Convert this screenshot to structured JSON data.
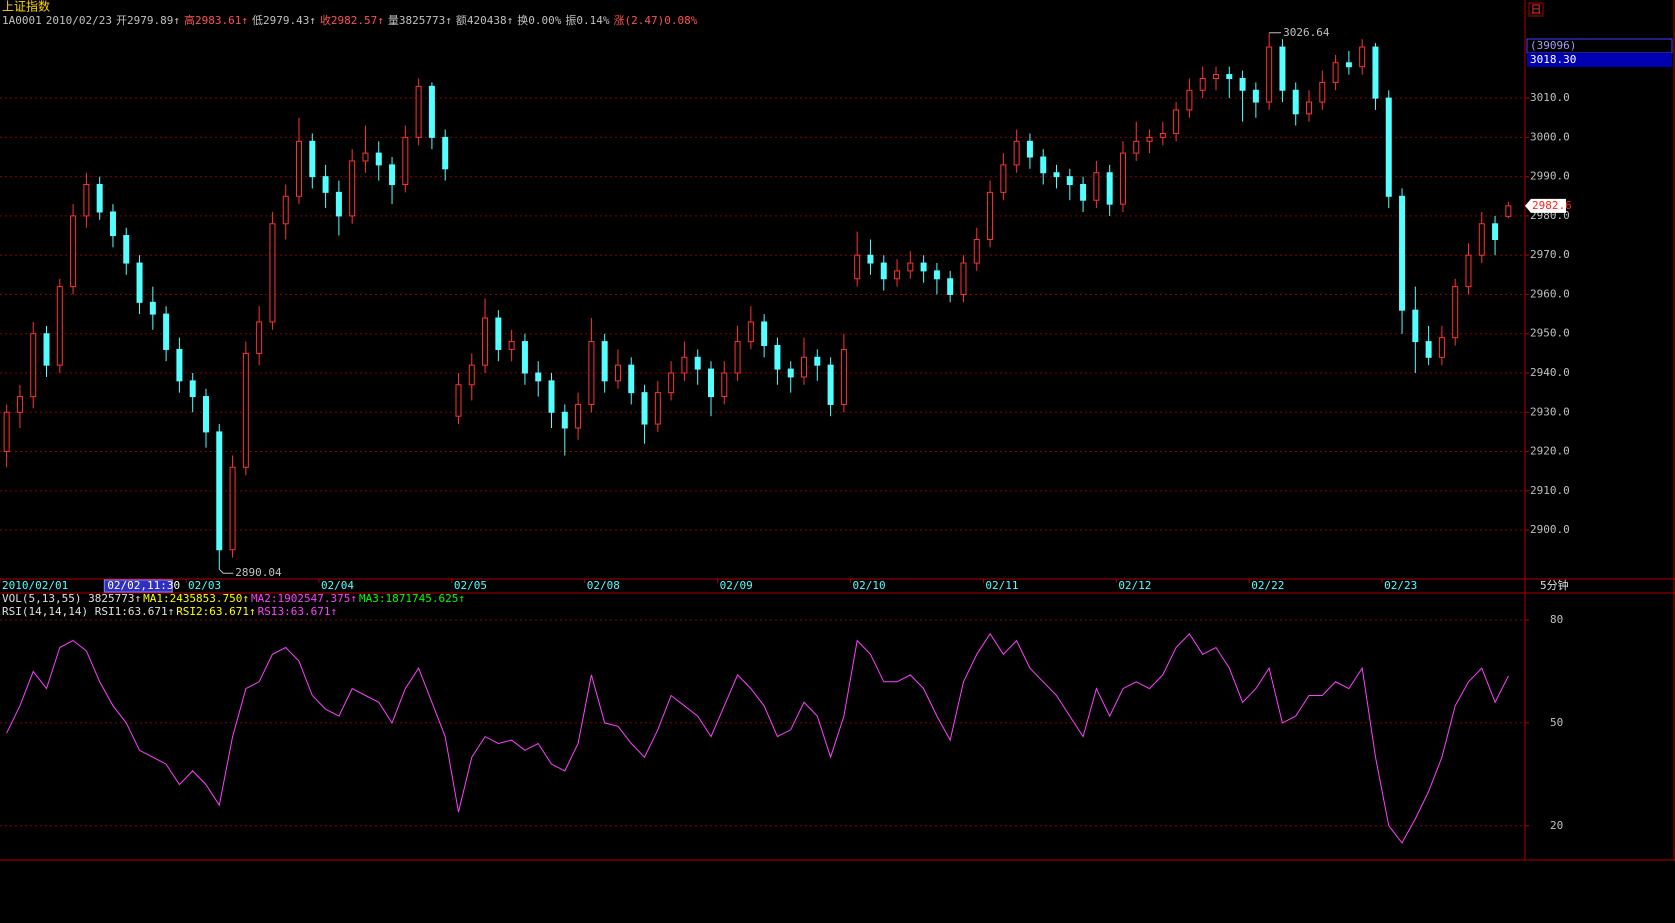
{
  "chart_data": [
    {
      "type": "candlestick",
      "title": "上证指数",
      "quote": [
        "1A0001",
        "2010/02/23",
        "开2979.89↑",
        "高2983.61↑",
        "低2979.43↑",
        "收2982.57↑",
        "量3825773↑",
        "额420438↑",
        "换0.00%",
        "振0.14%",
        "涨(2.47)0.08%"
      ],
      "period": "日",
      "interval_label": "5分钟",
      "cursor_readout": [
        "(39096)",
        "3018.30"
      ],
      "cursor_xlabel": {
        "value": 8,
        "label": "02/02,11:30"
      },
      "volume_legend": [
        "VOL(5,13,55) 3825773↑",
        "MA1:2435853.750↑",
        "MA2:1902547.375↑",
        "MA3:1871745.625↑"
      ],
      "high_label": "3026.64",
      "low_label": "2890.04",
      "last_price_label": "2982.6",
      "ylim": [
        2887.8,
        3030.4
      ],
      "yticks": [
        {
          "value": 2900,
          "label": "2900.0"
        },
        {
          "value": 2910,
          "label": "2910.0"
        },
        {
          "value": 2920,
          "label": "2920.0"
        },
        {
          "value": 2930,
          "label": "2930.0"
        },
        {
          "value": 2940,
          "label": "2940.0"
        },
        {
          "value": 2950,
          "label": "2950.0"
        },
        {
          "value": 2960,
          "label": "2960.0"
        },
        {
          "value": 2970,
          "label": "2970.0"
        },
        {
          "value": 2980,
          "label": "2980.0"
        },
        {
          "value": 2990,
          "label": "2990.0"
        },
        {
          "value": 3000,
          "label": "3000.0"
        },
        {
          "value": 3010,
          "label": "3010.0"
        }
      ],
      "xticks": [
        {
          "value": 0,
          "label": "2010/02/01"
        },
        {
          "value": 14,
          "label": "02/03"
        },
        {
          "value": 24,
          "label": "02/04"
        },
        {
          "value": 34,
          "label": "02/05"
        },
        {
          "value": 44,
          "label": "02/08"
        },
        {
          "value": 54,
          "label": "02/09"
        },
        {
          "value": 64,
          "label": "02/10"
        },
        {
          "value": 74,
          "label": "02/11"
        },
        {
          "value": 84,
          "label": "02/12"
        },
        {
          "value": 94,
          "label": "02/22"
        },
        {
          "value": 104,
          "label": "02/23"
        }
      ],
      "grid": true,
      "up_color": "#ff3232",
      "down_color": "#54ffff",
      "candles": [
        [
          2920,
          2932,
          2916,
          2930
        ],
        [
          2930,
          2937,
          2926,
          2934
        ],
        [
          2934,
          2953,
          2931,
          2950
        ],
        [
          2950,
          2952,
          2939,
          2942
        ],
        [
          2942,
          2964,
          2940,
          2962
        ],
        [
          2962,
          2983,
          2960,
          2980
        ],
        [
          2980,
          2991,
          2977,
          2988
        ],
        [
          2988,
          2990,
          2979,
          2981
        ],
        [
          2981,
          2983,
          2972,
          2975
        ],
        [
          2975,
          2977,
          2965,
          2968
        ],
        [
          2968,
          2970,
          2955,
          2958
        ],
        [
          2958,
          2962,
          2951,
          2955
        ],
        [
          2955,
          2957,
          2943,
          2946
        ],
        [
          2946,
          2949,
          2935,
          2938
        ],
        [
          2938,
          2940,
          2930,
          2934
        ],
        [
          2934,
          2936,
          2921,
          2925
        ],
        [
          2925,
          2927,
          2890.04,
          2895
        ],
        [
          2895,
          2919,
          2893,
          2916
        ],
        [
          2916,
          2948,
          2914,
          2945
        ],
        [
          2945,
          2957,
          2942,
          2953
        ],
        [
          2953,
          2981,
          2951,
          2978
        ],
        [
          2978,
          2988,
          2974,
          2985
        ],
        [
          2985,
          3005,
          2983,
          2999
        ],
        [
          2999,
          3001,
          2987,
          2990
        ],
        [
          2990,
          2993,
          2982,
          2986
        ],
        [
          2986,
          2989,
          2975,
          2980
        ],
        [
          2980,
          2997,
          2978,
          2994
        ],
        [
          2994,
          3003,
          2991,
          2996
        ],
        [
          2996,
          2999,
          2989,
          2993
        ],
        [
          2993,
          2995,
          2983,
          2988
        ],
        [
          2988,
          3003,
          2986,
          3000
        ],
        [
          3000,
          3015,
          2998,
          3013
        ],
        [
          3013,
          3014,
          2997,
          3000
        ],
        [
          3000,
          3002,
          2989,
          2992
        ],
        [
          2929,
          2940,
          2927,
          2937
        ],
        [
          2937,
          2945,
          2933,
          2942
        ],
        [
          2942,
          2959,
          2940,
          2954
        ],
        [
          2954,
          2956,
          2943,
          2946
        ],
        [
          2946,
          2951,
          2943,
          2948
        ],
        [
          2948,
          2950,
          2937,
          2940
        ],
        [
          2940,
          2943,
          2934,
          2938
        ],
        [
          2938,
          2940,
          2926,
          2930
        ],
        [
          2930,
          2932,
          2919,
          2926
        ],
        [
          2926,
          2935,
          2923,
          2932
        ],
        [
          2932,
          2954,
          2930,
          2948
        ],
        [
          2948,
          2950,
          2935,
          2938
        ],
        [
          2938,
          2946,
          2936,
          2942
        ],
        [
          2942,
          2944,
          2932,
          2935
        ],
        [
          2935,
          2937,
          2922,
          2927
        ],
        [
          2927,
          2938,
          2925,
          2935
        ],
        [
          2935,
          2943,
          2933,
          2940
        ],
        [
          2940,
          2948,
          2938,
          2944
        ],
        [
          2944,
          2946,
          2937,
          2941
        ],
        [
          2941,
          2943,
          2929,
          2934
        ],
        [
          2934,
          2943,
          2932,
          2940
        ],
        [
          2940,
          2952,
          2938,
          2948
        ],
        [
          2948,
          2957,
          2946,
          2953
        ],
        [
          2953,
          2955,
          2944,
          2947
        ],
        [
          2947,
          2949,
          2937,
          2941
        ],
        [
          2941,
          2943,
          2935,
          2939
        ],
        [
          2939,
          2949,
          2937,
          2944
        ],
        [
          2944,
          2946,
          2938,
          2942
        ],
        [
          2942,
          2944,
          2929,
          2932
        ],
        [
          2932,
          2950,
          2930,
          2946
        ],
        [
          2964,
          2976,
          2962,
          2970
        ],
        [
          2970,
          2974,
          2965,
          2968
        ],
        [
          2968,
          2970,
          2961,
          2964
        ],
        [
          2964,
          2969,
          2962,
          2966
        ],
        [
          2966,
          2971,
          2964,
          2968
        ],
        [
          2968,
          2970,
          2963,
          2966
        ],
        [
          2966,
          2968,
          2960,
          2964
        ],
        [
          2964,
          2966,
          2958,
          2960
        ],
        [
          2960,
          2970,
          2958,
          2968
        ],
        [
          2968,
          2977,
          2966,
          2974
        ],
        [
          2974,
          2989,
          2972,
          2986
        ],
        [
          2986,
          2996,
          2984,
          2993
        ],
        [
          2993,
          3002,
          2991,
          2999
        ],
        [
          2999,
          3001,
          2992,
          2995
        ],
        [
          2995,
          2997,
          2988,
          2991
        ],
        [
          2991,
          2993,
          2987,
          2990
        ],
        [
          2990,
          2992,
          2984,
          2988
        ],
        [
          2988,
          2990,
          2981,
          2984
        ],
        [
          2984,
          2994,
          2982,
          2991
        ],
        [
          2991,
          2993,
          2980,
          2983
        ],
        [
          2983,
          2999,
          2981,
          2996
        ],
        [
          2996,
          3004,
          2994,
          2999
        ],
        [
          2999,
          3002,
          2996,
          3000
        ],
        [
          3000,
          3004,
          2998,
          3001
        ],
        [
          3001,
          3009,
          2999,
          3007
        ],
        [
          3007,
          3015,
          3005,
          3012
        ],
        [
          3012,
          3018,
          3010,
          3015
        ],
        [
          3015,
          3018,
          3012,
          3016
        ],
        [
          3016,
          3018,
          3010,
          3015
        ],
        [
          3015,
          3017,
          3004,
          3012
        ],
        [
          3012,
          3014,
          3005,
          3009
        ],
        [
          3009,
          3026.64,
          3007,
          3023
        ],
        [
          3023,
          3025,
          3009,
          3012
        ],
        [
          3012,
          3014,
          3003,
          3006
        ],
        [
          3006,
          3012,
          3004,
          3009
        ],
        [
          3009,
          3017,
          3007,
          3014
        ],
        [
          3014,
          3021,
          3012,
          3019
        ],
        [
          3019,
          3022,
          3016,
          3018
        ],
        [
          3018,
          3025,
          3016,
          3023
        ],
        [
          3023,
          3024,
          3007,
          3010
        ],
        [
          3010,
          3012,
          2982,
          2985
        ],
        [
          2985,
          2987,
          2950,
          2956
        ],
        [
          2956,
          2962,
          2940,
          2948
        ],
        [
          2948,
          2952,
          2942,
          2944
        ],
        [
          2944,
          2952,
          2942,
          2949
        ],
        [
          2949,
          2964,
          2947,
          2962
        ],
        [
          2962,
          2973,
          2960,
          2970
        ],
        [
          2970,
          2981,
          2968,
          2978
        ],
        [
          2978,
          2980,
          2970,
          2974
        ],
        [
          2979.89,
          2983.61,
          2979.43,
          2982.57
        ]
      ]
    },
    {
      "type": "line",
      "legend_text": [
        "RSI(14,14,14) RSI1:63.671↑",
        "RSI2:63.671↑",
        "RSI3:63.671↑"
      ],
      "color": "#ff40ff",
      "ylim": [
        10.6,
        84.1
      ],
      "yticks": [
        20,
        50,
        80
      ],
      "grid": true,
      "values": [
        47,
        55,
        65,
        60,
        72,
        74,
        71,
        62,
        55,
        50,
        42,
        40,
        38,
        32,
        36,
        32,
        26,
        46,
        60,
        62,
        70,
        72,
        68,
        58,
        54,
        52,
        60,
        58,
        56,
        50,
        60,
        66,
        56,
        46,
        24,
        40,
        46,
        44,
        45,
        42,
        44,
        38,
        36,
        44,
        64,
        50,
        49,
        44,
        40,
        48,
        58,
        55,
        52,
        46,
        55,
        64,
        60,
        55,
        46,
        48,
        56,
        52,
        40,
        52,
        74,
        70,
        62,
        62,
        64,
        60,
        52,
        45,
        62,
        70,
        76,
        70,
        74,
        66,
        62,
        58,
        52,
        46,
        60,
        52,
        60,
        62,
        60,
        64,
        72,
        76,
        70,
        72,
        66,
        56,
        60,
        66,
        50,
        52,
        58,
        58,
        62,
        60,
        66,
        40,
        20,
        15,
        22,
        30,
        40,
        55,
        62,
        66,
        56,
        63.671
      ]
    }
  ]
}
